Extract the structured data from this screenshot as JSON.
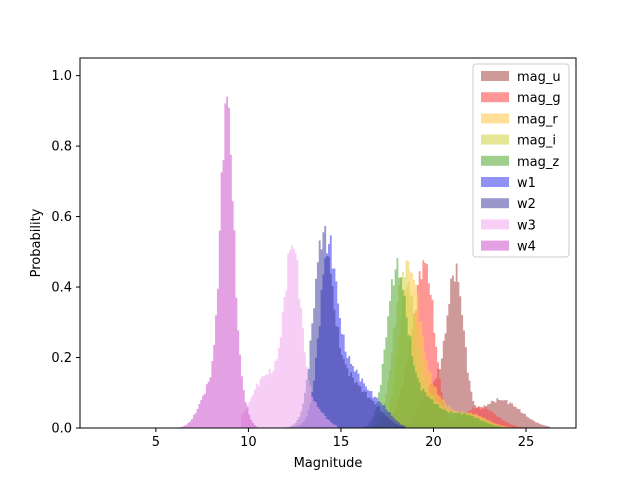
{
  "chart_data": {
    "type": "histogram",
    "title": "",
    "xlabel": "Magnitude",
    "ylabel": "Probability",
    "xlim": [
      0.9,
      27.7
    ],
    "ylim": [
      0,
      1.05
    ],
    "xticks": [
      5,
      10,
      15,
      20,
      25
    ],
    "yticks": [
      0.0,
      0.2,
      0.4,
      0.6,
      0.8,
      1.0
    ],
    "grid": false,
    "legend_position": "upper right",
    "histtype": "stepfilled",
    "series": [
      {
        "name": "mag_u",
        "color": "#b05a5a",
        "opacity": 0.62,
        "peaks": [
          {
            "center": 21.2,
            "sigma": 0.45,
            "height": 0.41
          },
          {
            "center": 20.0,
            "sigma": 0.7,
            "height": 0.12
          },
          {
            "center": 23.6,
            "sigma": 1.1,
            "height": 0.08
          }
        ],
        "range": [
          15.5,
          26.3
        ]
      },
      {
        "name": "mag_g",
        "color": "#ff4a4a",
        "opacity": 0.58,
        "peaks": [
          {
            "center": 19.6,
            "sigma": 0.5,
            "height": 0.4
          },
          {
            "center": 18.8,
            "sigma": 0.6,
            "height": 0.15
          },
          {
            "center": 22.5,
            "sigma": 0.9,
            "height": 0.06
          }
        ],
        "range": [
          15.0,
          25.0
        ]
      },
      {
        "name": "mag_r",
        "color": "#ffc94a",
        "opacity": 0.58,
        "peaks": [
          {
            "center": 18.7,
            "sigma": 0.55,
            "height": 0.41
          },
          {
            "center": 19.8,
            "sigma": 0.8,
            "height": 0.1
          },
          {
            "center": 22.0,
            "sigma": 0.9,
            "height": 0.04
          }
        ],
        "range": [
          15.0,
          24.5
        ]
      },
      {
        "name": "mag_i",
        "color": "#d2d24a",
        "opacity": 0.58,
        "peaks": [
          {
            "center": 18.4,
            "sigma": 0.55,
            "height": 0.42
          },
          {
            "center": 19.6,
            "sigma": 0.8,
            "height": 0.09
          },
          {
            "center": 21.8,
            "sigma": 0.9,
            "height": 0.04
          }
        ],
        "range": [
          15.0,
          24.5
        ]
      },
      {
        "name": "mag_z",
        "color": "#5aaa3a",
        "opacity": 0.58,
        "peaks": [
          {
            "center": 18.0,
            "sigma": 0.55,
            "height": 0.43
          },
          {
            "center": 19.3,
            "sigma": 0.8,
            "height": 0.09
          },
          {
            "center": 21.5,
            "sigma": 1.0,
            "height": 0.04
          }
        ],
        "range": [
          15.0,
          24.5
        ]
      },
      {
        "name": "w1",
        "color": "#2a2aee",
        "opacity": 0.52,
        "peaks": [
          {
            "center": 14.3,
            "sigma": 0.45,
            "height": 0.41
          },
          {
            "center": 15.3,
            "sigma": 1.0,
            "height": 0.18
          },
          {
            "center": 17.2,
            "sigma": 0.6,
            "height": 0.04
          }
        ],
        "range": [
          11.5,
          18.5
        ]
      },
      {
        "name": "w2",
        "color": "#3a3a9a",
        "opacity": 0.52,
        "peaks": [
          {
            "center": 14.0,
            "sigma": 0.5,
            "height": 0.45
          },
          {
            "center": 15.0,
            "sigma": 1.0,
            "height": 0.16
          },
          {
            "center": 16.8,
            "sigma": 0.7,
            "height": 0.04
          }
        ],
        "range": [
          11.0,
          18.5
        ]
      },
      {
        "name": "w3",
        "color": "#f2aaee",
        "opacity": 0.58,
        "peaks": [
          {
            "center": 12.4,
            "sigma": 0.45,
            "height": 0.48
          },
          {
            "center": 11.0,
            "sigma": 0.8,
            "height": 0.15
          },
          {
            "center": 13.5,
            "sigma": 0.6,
            "height": 0.06
          }
        ],
        "range": [
          9.6,
          14.8
        ]
      },
      {
        "name": "w4",
        "color": "#d060d0",
        "opacity": 0.6,
        "peaks": [
          {
            "center": 8.85,
            "sigma": 0.35,
            "height": 0.88
          },
          {
            "center": 8.0,
            "sigma": 0.6,
            "height": 0.12
          },
          {
            "center": 9.6,
            "sigma": 0.35,
            "height": 0.08
          }
        ],
        "range": [
          5.3,
          10.5
        ]
      }
    ]
  }
}
